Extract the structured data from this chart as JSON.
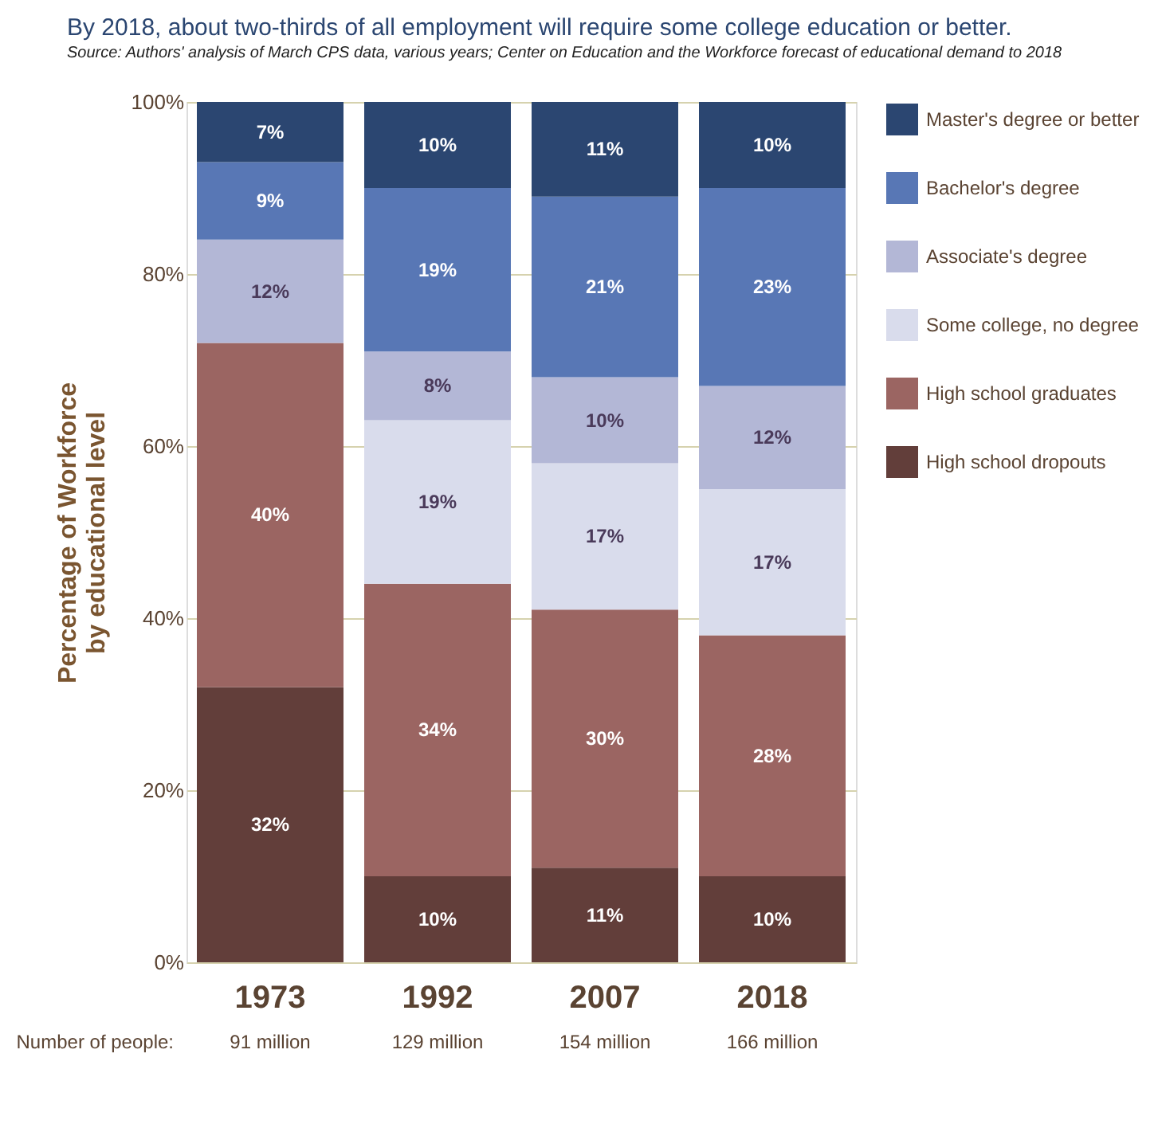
{
  "chart_data": {
    "type": "bar",
    "stacked": true,
    "title": "By 2018, about two-thirds of all employment will require some college education or better.",
    "subtitle": "Source: Authors' analysis of March CPS data, various years; Center on Education and the Workforce forecast of educational demand to 2018",
    "ylabel": "Percentage of Workforce\nby educational level",
    "categories": [
      "1973",
      "1992",
      "2007",
      "2018"
    ],
    "ylim": [
      0,
      100
    ],
    "yticks": [
      {
        "value": 0,
        "label": "0%"
      },
      {
        "value": 20,
        "label": "20%"
      },
      {
        "value": 40,
        "label": "40%"
      },
      {
        "value": 60,
        "label": "60%"
      },
      {
        "value": 80,
        "label": "80%"
      },
      {
        "value": 100,
        "label": "100%"
      }
    ],
    "grid": "y",
    "legend": "right",
    "series": [
      {
        "name": "High school dropouts",
        "color": "#623e3a",
        "values": [
          32,
          10,
          11,
          10
        ],
        "value_labels": [
          "32%",
          "10%",
          "11%",
          "10%"
        ]
      },
      {
        "name": "High school graduates",
        "color": "#9b6562",
        "values": [
          40,
          34,
          30,
          28
        ],
        "value_labels": [
          "40%",
          "34%",
          "30%",
          "28%"
        ]
      },
      {
        "name": "Some college, no degree",
        "color": "#d9dcec",
        "values": [
          null,
          19,
          17,
          17
        ],
        "value_labels": [
          null,
          "19%",
          "17%",
          "17%"
        ]
      },
      {
        "name": "Associate's degree",
        "color": "#b3b7d6",
        "values": [
          12,
          8,
          10,
          12
        ],
        "value_labels": [
          "12%",
          "8%",
          "10%",
          "12%"
        ]
      },
      {
        "name": "Bachelor's degree",
        "color": "#5877b5",
        "values": [
          9,
          19,
          21,
          23
        ],
        "value_labels": [
          "9%",
          "19%",
          "21%",
          "23%"
        ]
      },
      {
        "name": "Master's degree or better",
        "color": "#2b4671",
        "values": [
          7,
          10,
          11,
          10
        ],
        "value_labels": [
          "7%",
          "10%",
          "11%",
          "10%"
        ]
      }
    ],
    "annotations": [
      "Number of people:",
      "91 million",
      "129 million",
      "154 million",
      "166 million"
    ]
  }
}
